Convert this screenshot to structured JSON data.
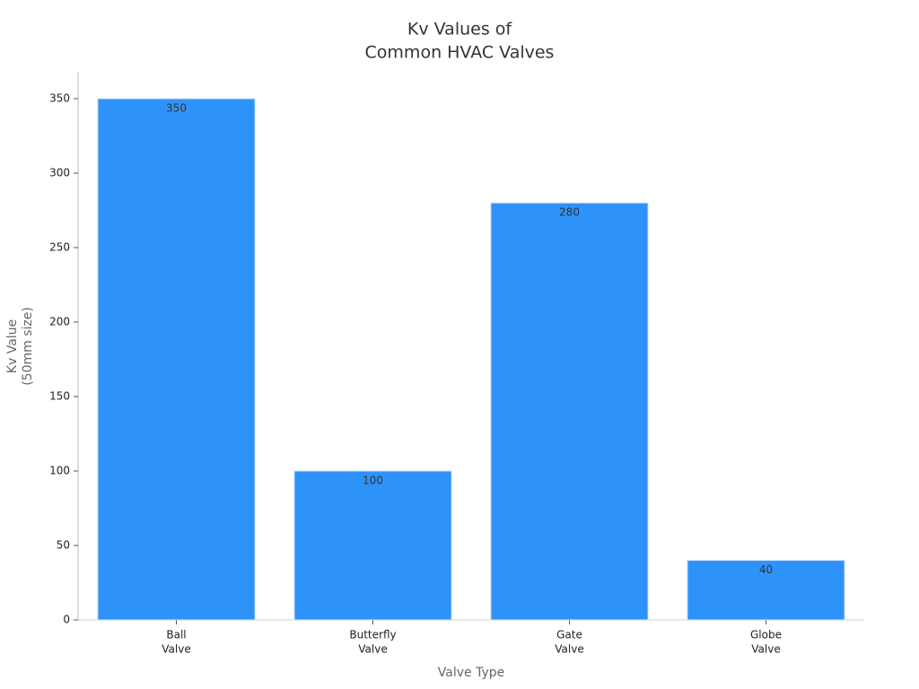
{
  "chart_data": {
    "type": "bar",
    "title": [
      "Kv Values of",
      "Common HVAC Valves"
    ],
    "x_label": "Valve Type",
    "y_label": [
      "Kv Value",
      "(50mm size)"
    ],
    "categories": [
      [
        "Ball",
        "Valve"
      ],
      [
        "Butterfly",
        "Valve"
      ],
      [
        "Gate",
        "Valve"
      ],
      [
        "Globe",
        "Valve"
      ]
    ],
    "values": [
      350,
      100,
      280,
      40
    ],
    "color": "#2e93f9",
    "ylim": [
      0,
      368
    ],
    "yticks": [
      0,
      50,
      100,
      150,
      200,
      250,
      300,
      350
    ],
    "grid": false
  }
}
